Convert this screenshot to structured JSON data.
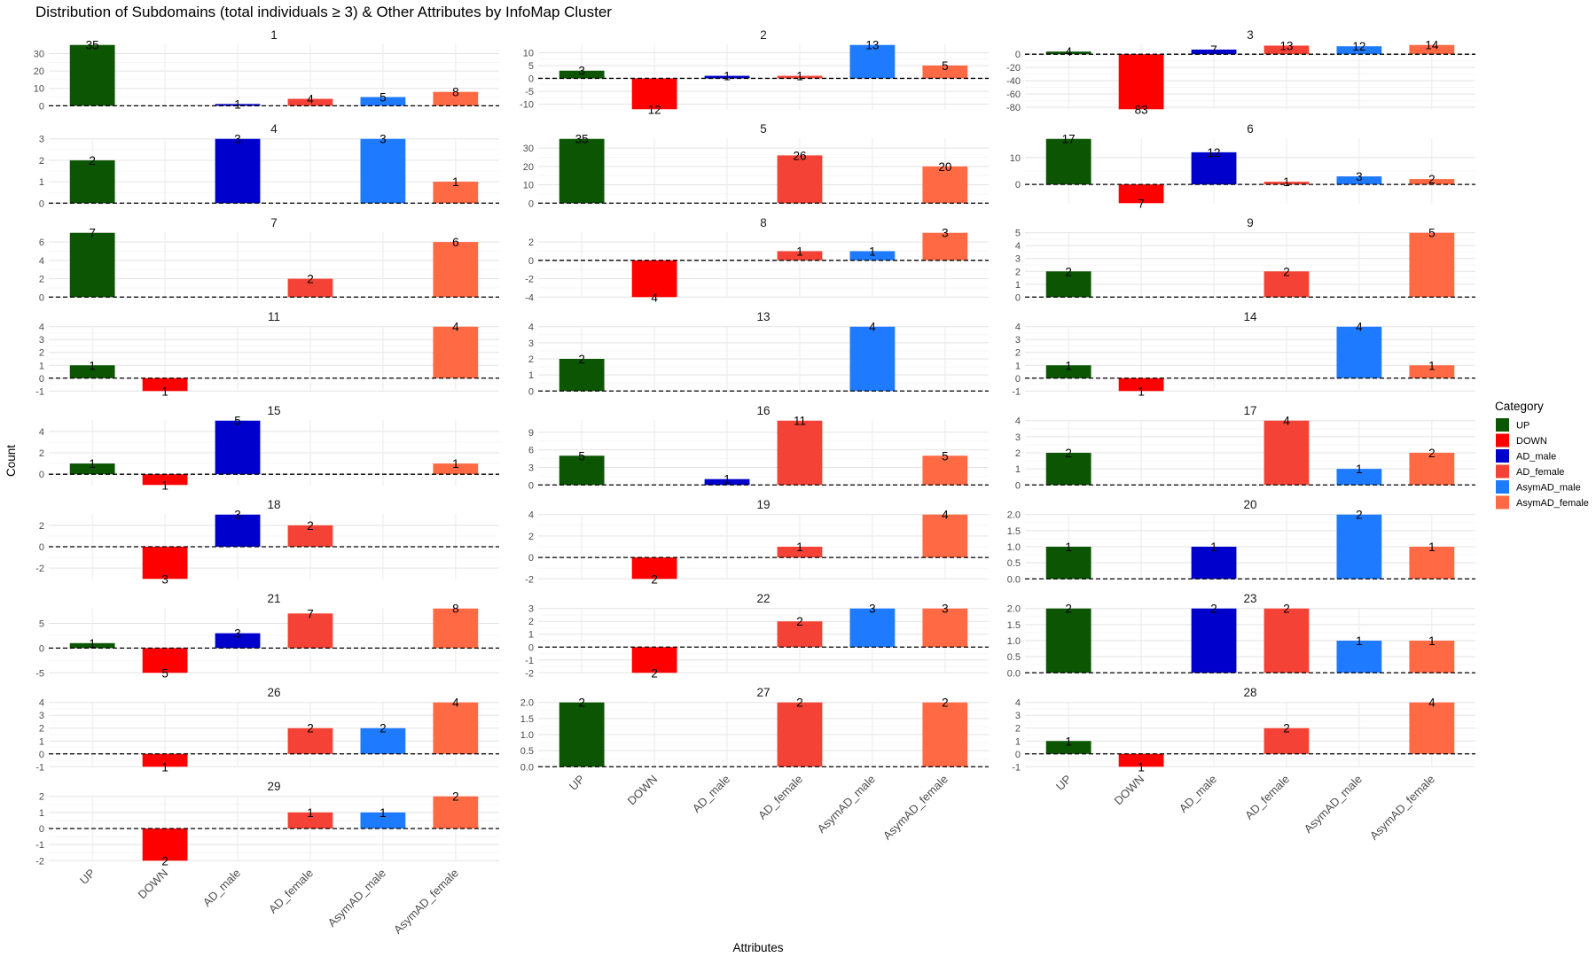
{
  "chart_data": {
    "type": "bar",
    "title": "Distribution of Subdomains (total individuals ≥ 3) & Other Attributes by InfoMap Cluster",
    "xlabel": "Attributes",
    "ylabel": "Count",
    "categories": [
      "UP",
      "DOWN",
      "AD_male",
      "AD_female",
      "AsymAD_male",
      "AsymAD_female"
    ],
    "colors": {
      "UP": "#0B5503",
      "DOWN": "#FF0000",
      "AD_male": "#0000CC",
      "AD_female": "#F44336",
      "AsymAD_male": "#1E7BFF",
      "AsymAD_female": "#FF6A45"
    },
    "legend": {
      "title": "Category",
      "position": "right",
      "entries": [
        "UP",
        "DOWN",
        "AD_male",
        "AD_female",
        "AsymAD_male",
        "AsymAD_female"
      ]
    },
    "grid": true,
    "reference_line": 0,
    "facets": [
      {
        "label": "1",
        "values": [
          35,
          null,
          1,
          4,
          5,
          8
        ],
        "ylim": [
          -2,
          35
        ],
        "ticks": [
          0,
          10,
          20,
          30
        ]
      },
      {
        "label": "2",
        "values": [
          3,
          -12,
          1,
          1,
          13,
          5
        ],
        "ylim": [
          -12,
          13
        ],
        "ticks": [
          -10,
          -5,
          0,
          5,
          10
        ]
      },
      {
        "label": "3",
        "values": [
          4,
          -83,
          7,
          13,
          12,
          14
        ],
        "ylim": [
          -83,
          14
        ],
        "ticks": [
          -80,
          -60,
          -40,
          -20,
          0
        ]
      },
      {
        "label": "4",
        "values": [
          2,
          null,
          3,
          null,
          3,
          1
        ],
        "ylim": [
          0,
          3
        ],
        "ticks": [
          0,
          1,
          2,
          3
        ]
      },
      {
        "label": "5",
        "values": [
          35,
          null,
          null,
          26,
          null,
          20
        ],
        "ylim": [
          0,
          35
        ],
        "ticks": [
          0,
          10,
          20,
          30
        ]
      },
      {
        "label": "6",
        "values": [
          17,
          -7,
          12,
          1,
          3,
          2
        ],
        "ylim": [
          -7,
          17
        ],
        "ticks": [
          0,
          10
        ]
      },
      {
        "label": "7",
        "values": [
          7,
          null,
          null,
          2,
          null,
          6
        ],
        "ylim": [
          0,
          7
        ],
        "ticks": [
          0,
          2,
          4,
          6
        ]
      },
      {
        "label": "8",
        "values": [
          null,
          -4,
          null,
          1,
          1,
          3
        ],
        "ylim": [
          -4,
          3
        ],
        "ticks": [
          -4,
          -2,
          0,
          2
        ]
      },
      {
        "label": "9",
        "values": [
          2,
          null,
          null,
          2,
          null,
          5
        ],
        "ylim": [
          0,
          5
        ],
        "ticks": [
          0,
          1,
          2,
          3,
          4,
          5
        ]
      },
      {
        "label": "11",
        "values": [
          1,
          -1,
          null,
          null,
          null,
          4
        ],
        "ylim": [
          -1,
          4
        ],
        "ticks": [
          -1,
          0,
          1,
          2,
          3,
          4
        ]
      },
      {
        "label": "13",
        "values": [
          2,
          null,
          null,
          null,
          4,
          null
        ],
        "ylim": [
          0,
          4
        ],
        "ticks": [
          0,
          1,
          2,
          3,
          4
        ]
      },
      {
        "label": "14",
        "values": [
          1,
          -1,
          null,
          null,
          4,
          1
        ],
        "ylim": [
          -1,
          4
        ],
        "ticks": [
          -1,
          0,
          1,
          2,
          3,
          4
        ]
      },
      {
        "label": "15",
        "values": [
          1,
          -1,
          5,
          null,
          null,
          1
        ],
        "ylim": [
          -1,
          5
        ],
        "ticks": [
          0,
          2,
          4
        ]
      },
      {
        "label": "16",
        "values": [
          5,
          null,
          1,
          11,
          null,
          5
        ],
        "ylim": [
          0,
          11
        ],
        "ticks": [
          0,
          3,
          6,
          9
        ]
      },
      {
        "label": "17",
        "values": [
          2,
          null,
          null,
          4,
          1,
          2
        ],
        "ylim": [
          0,
          4
        ],
        "ticks": [
          0,
          1,
          2,
          3,
          4
        ]
      },
      {
        "label": "18",
        "values": [
          null,
          -3,
          3,
          2,
          null,
          null
        ],
        "ylim": [
          -3,
          3
        ],
        "ticks": [
          -2,
          0,
          2
        ]
      },
      {
        "label": "19",
        "values": [
          null,
          -2,
          null,
          1,
          null,
          4
        ],
        "ylim": [
          -2,
          4
        ],
        "ticks": [
          -2,
          0,
          2,
          4
        ]
      },
      {
        "label": "20",
        "values": [
          1,
          null,
          1,
          null,
          2,
          1
        ],
        "ylim": [
          0,
          2
        ],
        "ticks": [
          0.0,
          0.5,
          1.0,
          1.5,
          2.0
        ]
      },
      {
        "label": "21",
        "values": [
          1,
          -5,
          3,
          7,
          null,
          8
        ],
        "ylim": [
          -5,
          8
        ],
        "ticks": [
          -5,
          0,
          5
        ]
      },
      {
        "label": "22",
        "values": [
          null,
          -2,
          null,
          2,
          3,
          3
        ],
        "ylim": [
          -2,
          3
        ],
        "ticks": [
          -2,
          -1,
          0,
          1,
          2,
          3
        ]
      },
      {
        "label": "23",
        "values": [
          2,
          null,
          2,
          2,
          1,
          1
        ],
        "ylim": [
          0,
          2
        ],
        "ticks": [
          0.0,
          0.5,
          1.0,
          1.5,
          2.0
        ]
      },
      {
        "label": "26",
        "values": [
          null,
          -1,
          null,
          2,
          2,
          4
        ],
        "ylim": [
          -1,
          4
        ],
        "ticks": [
          -1,
          0,
          1,
          2,
          3,
          4
        ]
      },
      {
        "label": "27",
        "values": [
          2,
          null,
          null,
          2,
          null,
          2
        ],
        "ylim": [
          0,
          2
        ],
        "ticks": [
          0.0,
          0.5,
          1.0,
          1.5,
          2.0
        ]
      },
      {
        "label": "28",
        "values": [
          1,
          -1,
          null,
          2,
          null,
          4
        ],
        "ylim": [
          -1,
          4
        ],
        "ticks": [
          -1,
          0,
          1,
          2,
          3,
          4
        ]
      },
      {
        "label": "29",
        "values": [
          null,
          -2,
          null,
          1,
          1,
          2
        ],
        "ylim": [
          -2,
          2
        ],
        "ticks": [
          -2,
          -1,
          0,
          1,
          2
        ]
      }
    ]
  }
}
